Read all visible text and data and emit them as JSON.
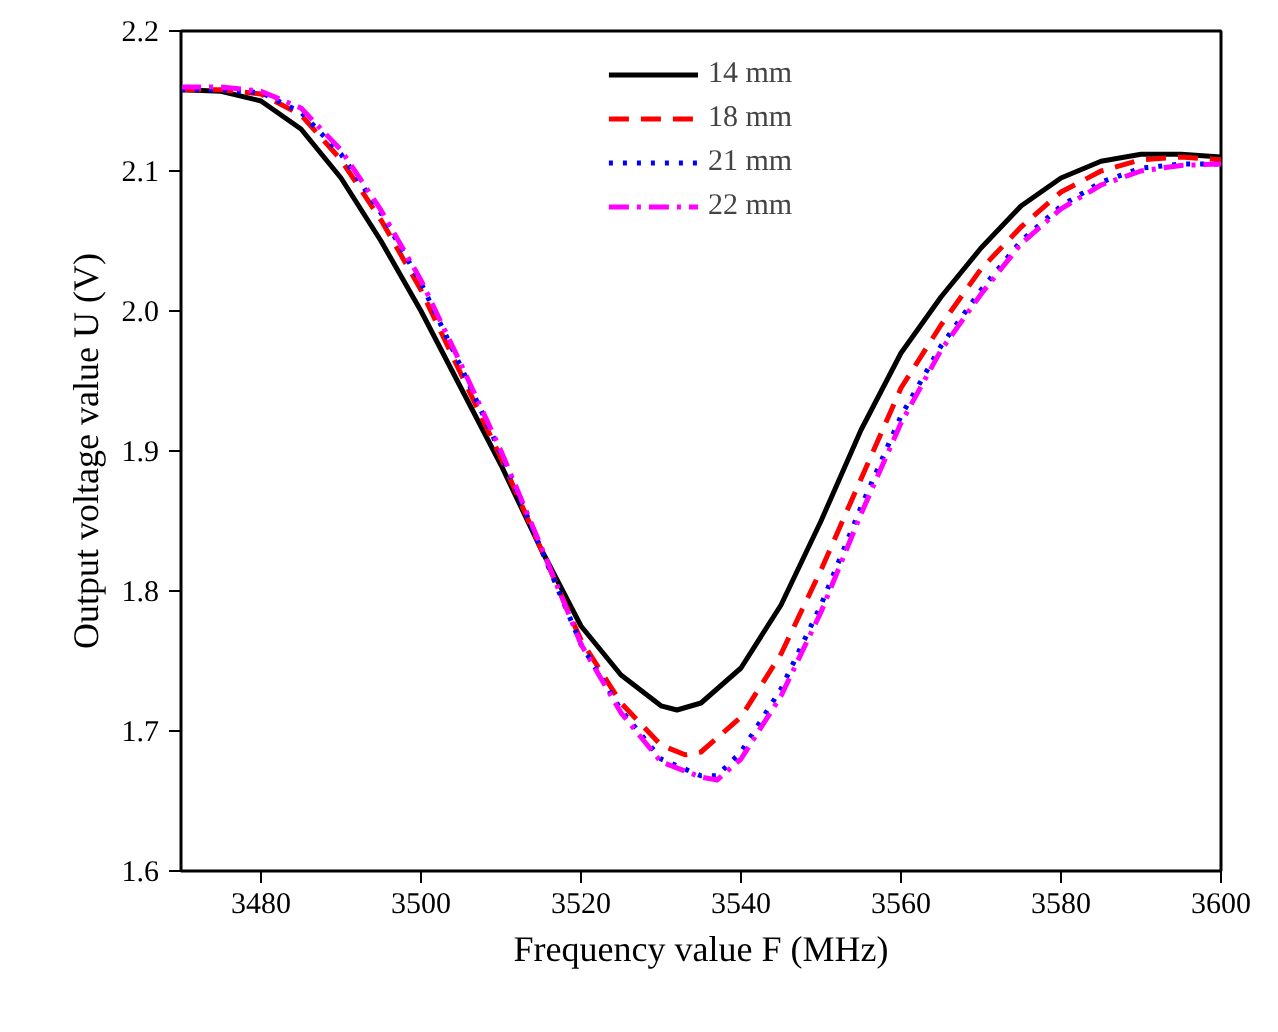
{
  "chart_data": {
    "type": "line",
    "xlabel": "Frequency value F (MHz)",
    "ylabel": "Output voltage value U (V)",
    "xlim": [
      3470,
      3600
    ],
    "xticks": [
      3480,
      3500,
      3520,
      3540,
      3560,
      3580,
      3600
    ],
    "ylim": [
      1.6,
      2.2
    ],
    "yticks": [
      1.6,
      1.7,
      1.8,
      1.9,
      {
        "value": 2,
        "label": "2.0"
      },
      2.1,
      2.2
    ],
    "grid": false,
    "legend": "top",
    "marker": "none",
    "series": [
      {
        "name": "14 mm",
        "color": "#000000",
        "line_style": "solid",
        "x": [
          3470,
          3475,
          3480,
          3485,
          3490,
          3495,
          3500,
          3505,
          3510,
          3515,
          3520,
          3525,
          3530,
          3532,
          3535,
          3540,
          3545,
          3550,
          3555,
          3560,
          3565,
          3570,
          3575,
          3580,
          3585,
          3590,
          3595,
          3600
        ],
        "values": [
          2.158,
          2.157,
          2.15,
          2.13,
          2.095,
          2.05,
          2.0,
          1.945,
          1.89,
          1.83,
          1.775,
          1.74,
          1.718,
          1.715,
          1.72,
          1.745,
          1.79,
          1.85,
          1.915,
          1.97,
          2.01,
          2.045,
          2.075,
          2.095,
          2.107,
          2.112,
          2.112,
          2.11
        ]
      },
      {
        "name": "18 mm",
        "color": "#ff0000",
        "line_style": "dashed",
        "x": [
          3470,
          3475,
          3480,
          3485,
          3490,
          3495,
          3500,
          3505,
          3510,
          3515,
          3520,
          3525,
          3530,
          3533,
          3535,
          3540,
          3545,
          3550,
          3555,
          3560,
          3565,
          3570,
          3575,
          3580,
          3585,
          3590,
          3595,
          3600
        ],
        "values": [
          2.158,
          2.158,
          2.155,
          2.14,
          2.108,
          2.065,
          2.015,
          1.955,
          1.895,
          1.83,
          1.765,
          1.72,
          1.69,
          1.683,
          1.685,
          1.71,
          1.755,
          1.815,
          1.88,
          1.945,
          1.99,
          2.03,
          2.06,
          2.085,
          2.1,
          2.108,
          2.11,
          2.108
        ]
      },
      {
        "name": "21 mm",
        "color": "#0000ff",
        "line_style": "dotted",
        "x": [
          3470,
          3475,
          3480,
          3485,
          3490,
          3495,
          3500,
          3505,
          3510,
          3515,
          3520,
          3525,
          3530,
          3535,
          3537,
          3540,
          3545,
          3550,
          3555,
          3560,
          3565,
          3570,
          3575,
          3580,
          3585,
          3590,
          3595,
          3600
        ],
        "values": [
          2.158,
          2.158,
          2.156,
          2.142,
          2.112,
          2.07,
          2.02,
          1.96,
          1.898,
          1.83,
          1.762,
          1.715,
          1.68,
          1.668,
          1.668,
          1.685,
          1.73,
          1.79,
          1.86,
          1.925,
          1.975,
          2.015,
          2.05,
          2.075,
          2.092,
          2.102,
          2.105,
          2.105
        ]
      },
      {
        "name": "22 mm",
        "color": "#ff00ff",
        "line_style": "dashdot",
        "x": [
          3470,
          3475,
          3480,
          3485,
          3490,
          3495,
          3500,
          3505,
          3510,
          3515,
          3520,
          3525,
          3530,
          3535,
          3537,
          3540,
          3545,
          3550,
          3555,
          3560,
          3565,
          3570,
          3575,
          3580,
          3585,
          3590,
          3595,
          3600
        ],
        "values": [
          2.16,
          2.16,
          2.157,
          2.145,
          2.115,
          2.072,
          2.022,
          1.962,
          1.9,
          1.832,
          1.762,
          1.713,
          1.678,
          1.667,
          1.665,
          1.68,
          1.725,
          1.785,
          1.855,
          1.92,
          1.972,
          2.012,
          2.048,
          2.073,
          2.09,
          2.1,
          2.104,
          2.105
        ]
      }
    ]
  }
}
